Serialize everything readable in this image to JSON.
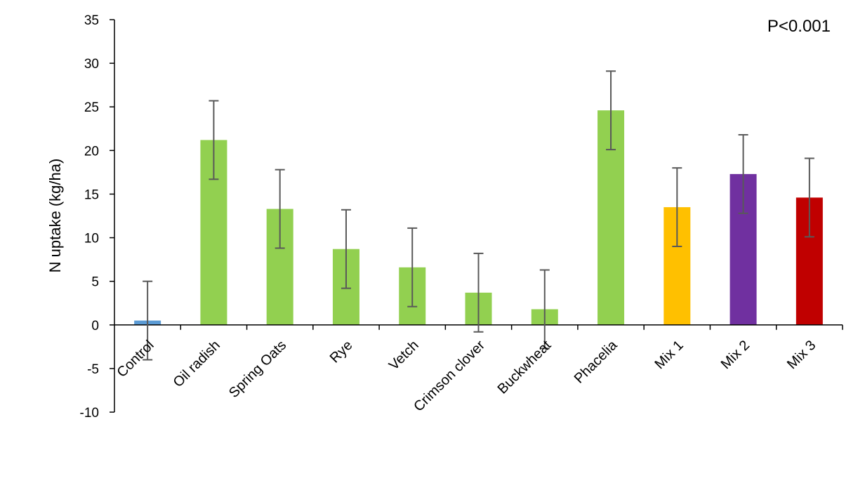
{
  "chart_data": {
    "type": "bar",
    "title": "",
    "xlabel": "",
    "ylabel": "N uptake (kg/ha)",
    "ylim": [
      -10,
      35
    ],
    "yticks": [
      -10,
      -5,
      0,
      5,
      10,
      15,
      20,
      25,
      30,
      35
    ],
    "grid": false,
    "legend": "none",
    "annotation": "P<0.001",
    "categories": [
      "Control",
      "Oil radish",
      "Spring Oats",
      "Rye",
      "Vetch",
      "Crimson clover",
      "Buckwheat",
      "Phacelia",
      "Mix 1",
      "Mix 2",
      "Mix 3"
    ],
    "values": [
      0.5,
      21.2,
      13.3,
      8.7,
      6.6,
      3.7,
      1.8,
      24.6,
      13.5,
      17.3,
      14.6
    ],
    "errors": [
      4.5,
      4.5,
      4.5,
      4.5,
      4.5,
      4.5,
      4.5,
      4.5,
      4.5,
      4.5,
      4.5
    ],
    "colors": [
      "#5B9BD5",
      "#92D050",
      "#92D050",
      "#92D050",
      "#92D050",
      "#92D050",
      "#92D050",
      "#92D050",
      "#FFC000",
      "#7030A0",
      "#C00000"
    ],
    "error_bar_color": "#595959",
    "axis_color": "#000000"
  }
}
